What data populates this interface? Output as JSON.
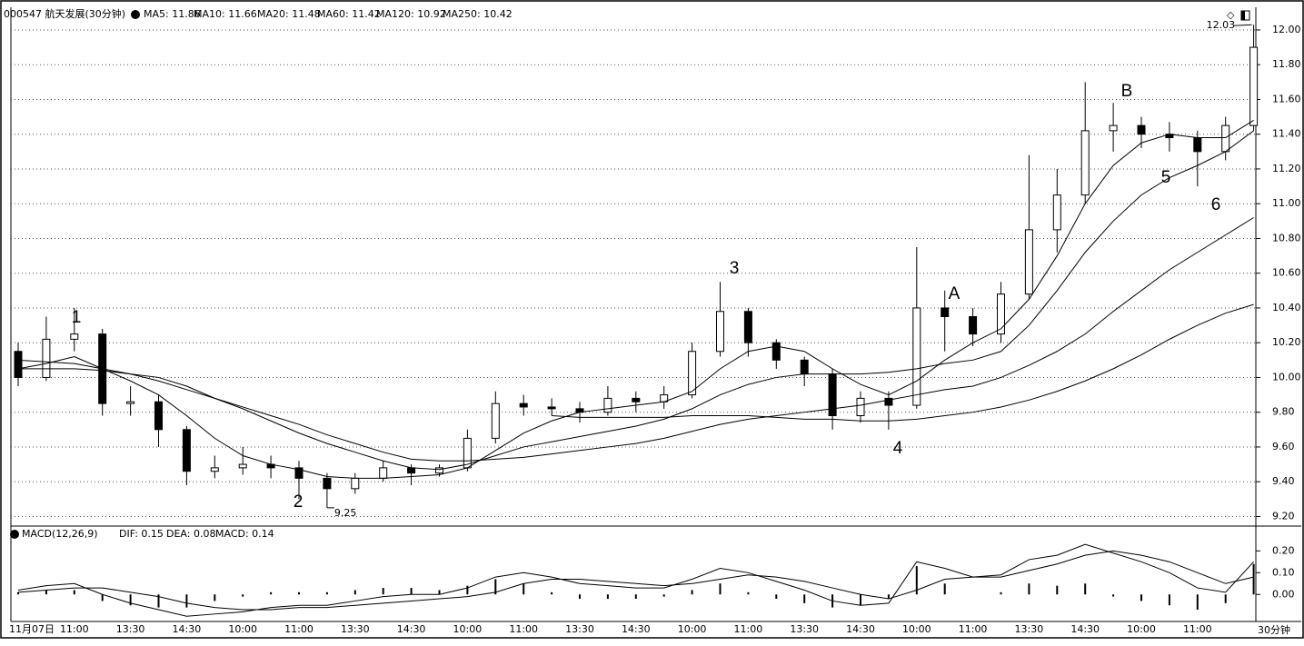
{
  "chart_data": [
    {
      "type": "candlestick",
      "title": "000547 航天发展(30分钟)",
      "legend": [
        "MA5: 11.86",
        "MA10: 11.66",
        "MA20: 11.48",
        "MA60: 11.42",
        "MA120: 10.92",
        "MA250: 10.42"
      ],
      "color": "#000000",
      "grid": true,
      "categories": [
        "11月07日",
        null,
        "11:00",
        null,
        "13:30",
        null,
        "14:30",
        null,
        "10:00",
        null,
        "11:00",
        null,
        "13:30",
        null,
        "14:30",
        null,
        "10:00",
        null,
        "11:00",
        null,
        "13:30",
        null,
        "14:30",
        null,
        "10:00",
        null,
        "11:00",
        null,
        "13:30",
        null,
        "14:30",
        null,
        "10:00",
        null,
        "11:00",
        null,
        "13:30",
        null,
        "14:30",
        null,
        "10:00",
        null,
        "11:00",
        null,
        null
      ],
      "open": [
        10.15,
        10.0,
        10.22,
        10.25,
        9.85,
        9.86,
        9.7,
        9.46,
        9.48,
        9.5,
        9.48,
        9.42,
        9.36,
        9.42,
        9.48,
        9.45,
        9.48,
        9.65,
        9.85,
        9.83,
        9.82,
        9.8,
        9.88,
        9.86,
        9.9,
        10.15,
        10.38,
        10.2,
        10.1,
        10.02,
        9.78,
        9.88,
        9.84,
        10.4,
        10.35,
        10.25,
        10.48,
        10.85,
        11.05,
        11.42,
        11.45,
        11.4,
        11.38,
        11.3,
        11.45
      ],
      "high": [
        10.2,
        10.35,
        10.4,
        10.28,
        9.95,
        9.9,
        9.72,
        9.55,
        9.6,
        9.55,
        9.52,
        9.45,
        9.45,
        9.52,
        9.5,
        9.5,
        9.7,
        9.92,
        9.9,
        9.88,
        9.86,
        9.95,
        9.92,
        9.95,
        10.2,
        10.55,
        10.4,
        10.22,
        10.12,
        10.05,
        9.92,
        9.92,
        10.75,
        10.5,
        10.4,
        10.55,
        11.28,
        11.2,
        11.7,
        11.58,
        11.5,
        11.47,
        11.42,
        11.5,
        12.03
      ],
      "low": [
        9.95,
        9.98,
        10.15,
        9.78,
        9.78,
        9.6,
        9.38,
        9.42,
        9.44,
        9.42,
        9.3,
        9.25,
        9.33,
        9.4,
        9.38,
        9.43,
        9.46,
        9.62,
        9.78,
        9.78,
        9.74,
        9.78,
        9.8,
        9.82,
        9.88,
        10.12,
        10.12,
        10.05,
        9.95,
        9.7,
        9.74,
        9.7,
        9.82,
        10.15,
        10.18,
        10.2,
        10.45,
        10.72,
        11.0,
        11.3,
        11.32,
        11.3,
        11.1,
        11.25,
        11.42
      ],
      "close": [
        10.0,
        10.22,
        10.25,
        9.85,
        9.86,
        9.7,
        9.46,
        9.48,
        9.5,
        9.48,
        9.42,
        9.36,
        9.42,
        9.48,
        9.45,
        9.48,
        9.65,
        9.85,
        9.83,
        9.82,
        9.8,
        9.88,
        9.86,
        9.9,
        10.15,
        10.38,
        10.2,
        10.1,
        10.02,
        9.78,
        9.88,
        9.84,
        10.4,
        10.35,
        10.25,
        10.48,
        10.85,
        11.05,
        11.42,
        11.45,
        11.4,
        11.38,
        11.3,
        11.45,
        11.9
      ],
      "series": [
        {
          "values": [
            10.05,
            10.08,
            10.12,
            10.05,
            9.98,
            9.9,
            9.78,
            9.65,
            9.55,
            9.5,
            9.47,
            9.43,
            9.42,
            9.42,
            9.43,
            9.44,
            9.48,
            9.58,
            9.68,
            9.75,
            9.8,
            9.82,
            9.84,
            9.86,
            9.92,
            10.05,
            10.15,
            10.18,
            10.15,
            10.05,
            9.96,
            9.9,
            9.98,
            10.1,
            10.2,
            10.28,
            10.45,
            10.7,
            11.0,
            11.22,
            11.35,
            11.4,
            11.38,
            11.38,
            11.48
          ]
        },
        {
          "values": [
            10.05,
            10.05,
            10.05,
            10.04,
            10.02,
            10.0,
            9.95,
            9.88,
            9.82,
            9.75,
            9.68,
            9.62,
            9.57,
            9.52,
            9.48,
            9.47,
            9.5,
            9.55,
            9.6,
            9.63,
            9.66,
            9.69,
            9.72,
            9.76,
            9.82,
            9.9,
            9.96,
            10.0,
            10.02,
            10.02,
            10.02,
            10.03,
            10.05,
            10.08,
            10.1,
            10.15,
            10.3,
            10.5,
            10.72,
            10.9,
            11.05,
            11.15,
            11.22,
            11.3,
            11.42
          ]
        },
        {
          "values": [
            10.1,
            10.09,
            10.08,
            10.05,
            10.02,
            9.98,
            9.93,
            9.88,
            9.83,
            9.78,
            9.73,
            9.67,
            9.62,
            9.57,
            9.53,
            9.52,
            9.52,
            9.53,
            9.54,
            9.56,
            9.58,
            9.6,
            9.62,
            9.65,
            9.69,
            9.73,
            9.76,
            9.78,
            9.8,
            9.82,
            9.84,
            9.87,
            9.9,
            9.93,
            9.95,
            10.0,
            10.07,
            10.15,
            10.25,
            10.38,
            10.5,
            10.62,
            10.72,
            10.82,
            10.92
          ]
        },
        {
          "values": [
            null,
            null,
            null,
            null,
            null,
            null,
            null,
            null,
            null,
            null,
            null,
            null,
            null,
            null,
            null,
            null,
            null,
            null,
            null,
            9.78,
            9.77,
            9.77,
            9.77,
            9.77,
            9.78,
            9.78,
            9.78,
            9.77,
            9.76,
            9.76,
            9.75,
            9.75,
            9.76,
            9.78,
            9.8,
            9.83,
            9.87,
            9.92,
            9.98,
            10.05,
            10.13,
            10.22,
            10.3,
            10.37,
            10.42
          ]
        }
      ],
      "ylim": [
        9.15,
        12.12
      ],
      "yticks": [
        {
          "value": 9.2,
          "label": "9.20"
        },
        {
          "value": 9.4,
          "label": "9.40"
        },
        {
          "value": 9.6,
          "label": "9.60"
        },
        {
          "value": 9.8,
          "label": "9.80"
        },
        {
          "value": 10,
          "label": "10.00"
        },
        {
          "value": 10.2,
          "label": "10.20"
        },
        {
          "value": 10.4,
          "label": "10.40"
        },
        {
          "value": 10.6,
          "label": "10.60"
        },
        {
          "value": 10.8,
          "label": "10.80"
        },
        {
          "value": 11,
          "label": "11.00"
        },
        {
          "value": 11.2,
          "label": "11.20"
        },
        {
          "value": 11.4,
          "label": "11.40"
        },
        {
          "value": 11.6,
          "label": "11.60"
        },
        {
          "value": 11.8,
          "label": "11.80"
        },
        {
          "value": 12,
          "label": "12.00"
        }
      ],
      "annotations": [
        "1",
        "2",
        "3",
        "4",
        "5",
        "6",
        "A",
        "B"
      ],
      "period": "30分钟"
    },
    {
      "type": "macd",
      "legend": [
        "MACD(12,26,9)",
        "DIF: 0.15",
        "DEA: 0.08",
        "MACD: 0.14"
      ],
      "color": "#000000",
      "series": [
        {
          "values": [
            0.02,
            0.04,
            0.05,
            0.0,
            -0.04,
            -0.07,
            -0.1,
            -0.09,
            -0.08,
            -0.06,
            -0.05,
            -0.05,
            -0.03,
            -0.01,
            0.0,
            0.0,
            0.03,
            0.08,
            0.1,
            0.08,
            0.05,
            0.04,
            0.03,
            0.03,
            0.07,
            0.12,
            0.1,
            0.06,
            0.02,
            -0.03,
            -0.05,
            -0.04,
            0.15,
            0.12,
            0.08,
            0.09,
            0.16,
            0.18,
            0.23,
            0.19,
            0.15,
            0.1,
            0.03,
            0.01,
            0.15
          ]
        },
        {
          "values": [
            0.01,
            0.02,
            0.03,
            0.03,
            0.01,
            -0.01,
            -0.04,
            -0.06,
            -0.07,
            -0.07,
            -0.06,
            -0.06,
            -0.05,
            -0.04,
            -0.03,
            -0.02,
            -0.01,
            0.01,
            0.05,
            0.07,
            0.07,
            0.06,
            0.05,
            0.04,
            0.05,
            0.07,
            0.09,
            0.08,
            0.06,
            0.03,
            0.0,
            -0.02,
            0.02,
            0.07,
            0.08,
            0.08,
            0.11,
            0.14,
            0.18,
            0.2,
            0.18,
            0.15,
            0.1,
            0.05,
            0.08
          ]
        }
      ],
      "histogram": [
        0.01,
        0.02,
        0.02,
        -0.03,
        -0.05,
        -0.06,
        -0.06,
        -0.03,
        -0.01,
        0.01,
        0.01,
        0.01,
        0.02,
        0.03,
        0.03,
        0.02,
        0.04,
        0.07,
        0.05,
        0.01,
        -0.02,
        -0.02,
        -0.02,
        -0.01,
        0.02,
        0.05,
        0.01,
        -0.02,
        -0.04,
        -0.06,
        -0.05,
        -0.02,
        0.13,
        0.05,
        0.0,
        0.01,
        0.05,
        0.04,
        0.05,
        -0.01,
        -0.03,
        -0.05,
        -0.07,
        -0.04,
        0.14
      ],
      "ylim": [
        -0.12,
        0.31
      ],
      "yticks": [
        {
          "value": 0,
          "label": "0.00"
        },
        {
          "value": 0.1,
          "label": "0.10"
        },
        {
          "value": 0.2,
          "label": "0.20"
        }
      ]
    }
  ]
}
